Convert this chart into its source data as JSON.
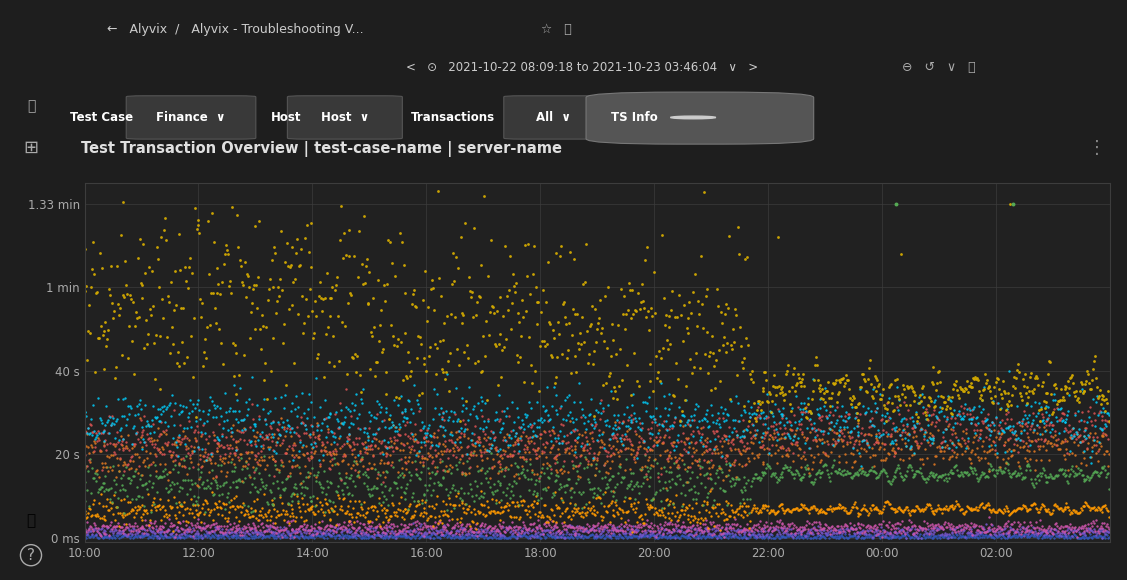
{
  "bg_color": "#1e1e1e",
  "chart_bg": "#212121",
  "title": "Test Transaction Overview | test-case-name | server-name",
  "title_color": "#e0e0e0",
  "yticks_labels": [
    "0 ms",
    "20 s",
    "40 s",
    "1 min",
    "1.33 min"
  ],
  "yticks_values": [
    0,
    20,
    40,
    60,
    80
  ],
  "xticks_labels": [
    "10:00",
    "12:00",
    "14:00",
    "16:00",
    "18:00",
    "20:00",
    "22:00",
    "00:00",
    "02:00"
  ],
  "xticks_positions": [
    0,
    120,
    240,
    360,
    480,
    600,
    720,
    840,
    960
  ],
  "ylim": [
    -1,
    85
  ],
  "xlim": [
    0,
    1080
  ],
  "grid_color": "#3d3d3d",
  "tick_color": "#aaaaaa",
  "colors": {
    "yellow": "#d4aa00",
    "cyan": "#00cfff",
    "red": "#e05555",
    "orange_dark": "#dd7722",
    "green": "#55aa55",
    "orange_light": "#ff9900",
    "pink": "#cc55aa",
    "purple": "#7755cc",
    "blue_dark": "#3355bb"
  },
  "header_bg": "#161616",
  "filter_bg": "#1a1a1a",
  "button_bg": "#333333",
  "seed": 7
}
